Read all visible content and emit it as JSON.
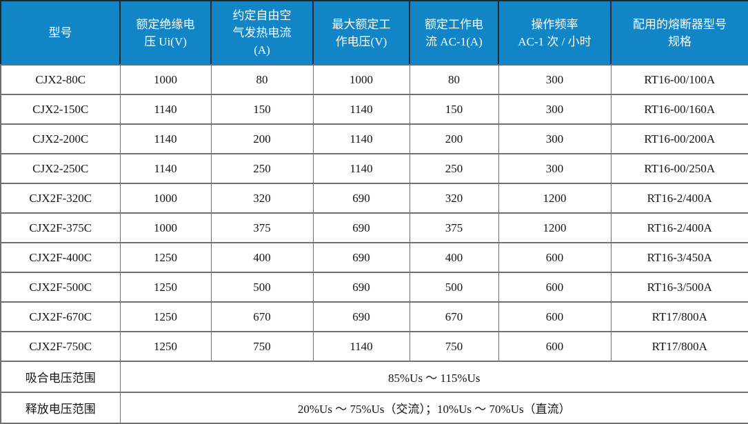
{
  "table": {
    "columns": [
      "型号",
      "额定绝缘电\n压 Ui(V)",
      "约定自由空\n气发热电流\n(A)",
      "最大额定工\n作电压(V)",
      "额定工作电\n流 AC-1(A)",
      "操作频率\nAC-1 次 / 小时",
      "配用的熔断器型号\n规格"
    ],
    "rows": [
      [
        "CJX2-80C",
        "1000",
        "80",
        "1000",
        "80",
        "300",
        "RT16-00/100A"
      ],
      [
        "CJX2-150C",
        "1140",
        "150",
        "1140",
        "150",
        "300",
        "RT16-00/160A"
      ],
      [
        "CJX2-200C",
        "1140",
        "200",
        "1140",
        "200",
        "300",
        "RT16-00/200A"
      ],
      [
        "CJX2-250C",
        "1140",
        "250",
        "1140",
        "250",
        "300",
        "RT16-00/250A"
      ],
      [
        "CJX2F-320C",
        "1000",
        "320",
        "690",
        "320",
        "1200",
        "RT16-2/400A"
      ],
      [
        "CJX2F-375C",
        "1000",
        "375",
        "690",
        "375",
        "1200",
        "RT16-2/400A"
      ],
      [
        "CJX2F-400C",
        "1250",
        "400",
        "690",
        "400",
        "600",
        "RT16-3/450A"
      ],
      [
        "CJX2F-500C",
        "1250",
        "500",
        "690",
        "500",
        "600",
        "RT16-3/500A"
      ],
      [
        "CJX2F-670C",
        "1250",
        "670",
        "690",
        "670",
        "600",
        "RT17/800A"
      ],
      [
        "CJX2F-750C",
        "1250",
        "750",
        "1140",
        "750",
        "600",
        "RT17/800A"
      ]
    ],
    "footer_rows": [
      {
        "label": "吸合电压范围",
        "value": "85%Us ～ 115%Us"
      },
      {
        "label": "释放电压范围",
        "value": "20%Us ～ 75%Us（交流）；10%Us ～ 70%Us（直流）"
      }
    ]
  },
  "colors": {
    "header_bg": "#1185c5",
    "header_text": "#ffffff",
    "grid_line": "#6f6f6f",
    "header_divider": "#262626",
    "body_text": "#141414"
  }
}
